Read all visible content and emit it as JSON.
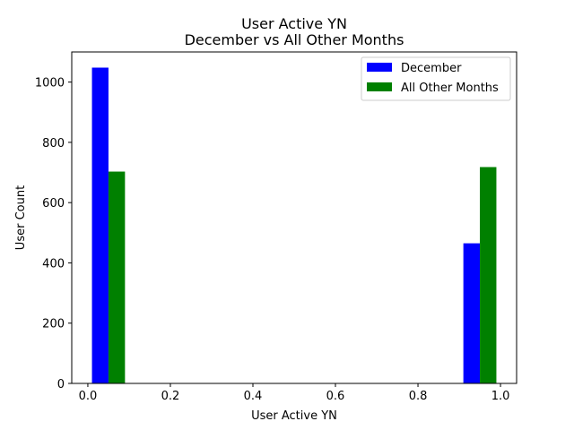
{
  "chart_data": {
    "type": "bar",
    "title": "User Active YN",
    "subtitle": "December vs All Other Months",
    "xlabel": "User Active YN",
    "ylabel": "User Count",
    "xlim": [
      -0.039,
      1.039
    ],
    "ylim": [
      0,
      1100
    ],
    "xticks": [
      0.0,
      0.2,
      0.4,
      0.6,
      0.8,
      1.0
    ],
    "xtick_labels": [
      "0.0",
      "0.2",
      "0.4",
      "0.6",
      "0.8",
      "1.0"
    ],
    "yticks": [
      0,
      200,
      400,
      600,
      800,
      1000
    ],
    "ytick_labels": [
      "0",
      "200",
      "400",
      "600",
      "800",
      "1000"
    ],
    "legend_position": "top-right",
    "grid": false,
    "series": [
      {
        "name": "December",
        "color": "#0000ff",
        "bins": [
          [
            0.01,
            0.05
          ],
          [
            0.91,
            0.95
          ]
        ],
        "values": [
          1048,
          465
        ]
      },
      {
        "name": "All Other Months",
        "color": "#008000",
        "bins": [
          [
            0.05,
            0.09
          ],
          [
            0.95,
            0.99
          ]
        ],
        "values": [
          703,
          718
        ]
      }
    ]
  }
}
